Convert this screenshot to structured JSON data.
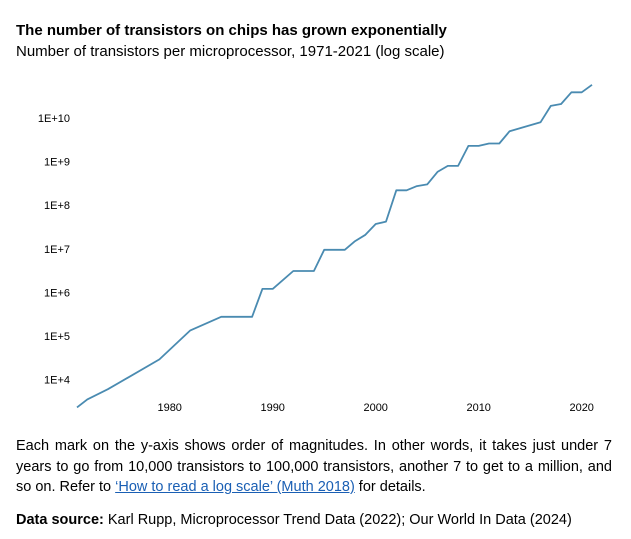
{
  "chart_data": {
    "type": "line",
    "title": "The number of transistors on chips has grown exponentially",
    "subtitle": "Number of transistors per microprocessor, 1971-2021 (log scale)",
    "xlabel": "",
    "ylabel": "",
    "y_scale": "log",
    "xlim": [
      1971,
      2021
    ],
    "ylim_log10": [
      3.6,
      10.85
    ],
    "grid": false,
    "y_ticks": [
      {
        "value": 10000,
        "label": "1E+4"
      },
      {
        "value": 100000,
        "label": "1E+5"
      },
      {
        "value": 1000000,
        "label": "1E+6"
      },
      {
        "value": 10000000,
        "label": "1E+7"
      },
      {
        "value": 100000000,
        "label": "1E+8"
      },
      {
        "value": 1000000000,
        "label": "1E+9"
      },
      {
        "value": 10000000000,
        "label": "1E+10"
      }
    ],
    "x_ticks": [
      {
        "value": 1980,
        "label": "1980"
      },
      {
        "value": 1990,
        "label": "1990"
      },
      {
        "value": 2000,
        "label": "2000"
      },
      {
        "value": 2010,
        "label": "2010"
      },
      {
        "value": 2020,
        "label": "2020"
      }
    ],
    "series": [
      {
        "color": "#4a8bb1",
        "points": [
          [
            1971,
            2300
          ],
          [
            1972,
            3500
          ],
          [
            1974,
            6000
          ],
          [
            1979,
            29000
          ],
          [
            1982,
            134000
          ],
          [
            1985,
            275000
          ],
          [
            1988,
            275000
          ],
          [
            1989,
            1200000
          ],
          [
            1990,
            1200000
          ],
          [
            1992,
            3100000
          ],
          [
            1994,
            3100000
          ],
          [
            1995,
            9500000
          ],
          [
            1997,
            9500000
          ],
          [
            1998,
            15000000
          ],
          [
            1999,
            21000000
          ],
          [
            2000,
            37000000
          ],
          [
            2001,
            42000000
          ],
          [
            2002,
            220000000
          ],
          [
            2003,
            220000000
          ],
          [
            2004,
            275000000
          ],
          [
            2005,
            300000000
          ],
          [
            2006,
            580000000
          ],
          [
            2007,
            800000000
          ],
          [
            2008,
            800000000
          ],
          [
            2009,
            2300000000
          ],
          [
            2010,
            2300000000
          ],
          [
            2011,
            2600000000
          ],
          [
            2012,
            2600000000
          ],
          [
            2013,
            5000000000
          ],
          [
            2016,
            8000000000
          ],
          [
            2017,
            19000000000
          ],
          [
            2018,
            21000000000
          ],
          [
            2019,
            39000000000
          ],
          [
            2020,
            39000000000
          ],
          [
            2021,
            58000000000
          ]
        ]
      }
    ]
  },
  "note": {
    "text_before": "Each mark on the y-axis shows order of magnitudes. In other words, it takes just under 7 years to go from 10,000 transistors to 100,000 transistors, another 7 to get to a million, and so on. Refer to ",
    "link_text": "‘How to read a log scale’ (Muth 2018)",
    "text_after": " for details."
  },
  "source": {
    "label": "Data source:",
    "text": "Karl Rupp, Microprocessor Trend Data (2022); Our World In Data (2024)"
  }
}
